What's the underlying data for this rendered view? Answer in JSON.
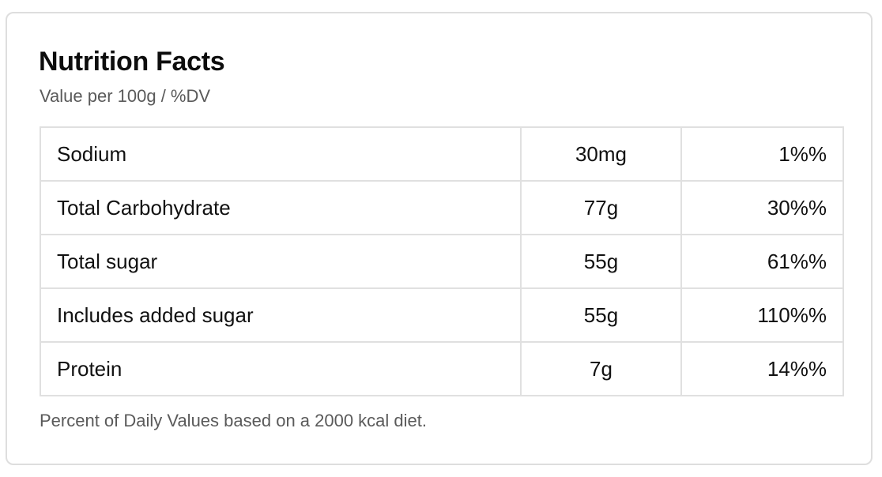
{
  "card": {
    "title": "Nutrition Facts",
    "subtitle": "Value per 100g / %DV",
    "footnote": "Percent of Daily Values based on a 2000 kcal diet."
  },
  "rows": [
    {
      "name": "Sodium",
      "amount": "30mg",
      "dv": "1%%"
    },
    {
      "name": "Total Carbohydrate",
      "amount": "77g",
      "dv": "30%%"
    },
    {
      "name": "Total sugar",
      "amount": "55g",
      "dv": "61%%"
    },
    {
      "name": "Includes added sugar",
      "amount": "55g",
      "dv": "110%%"
    },
    {
      "name": "Protein",
      "amount": "7g",
      "dv": "14%%"
    }
  ],
  "colors": {
    "border": "#e0e0e0",
    "card_border": "#dedede",
    "text": "#111111",
    "muted_text": "#5a5a5a"
  }
}
